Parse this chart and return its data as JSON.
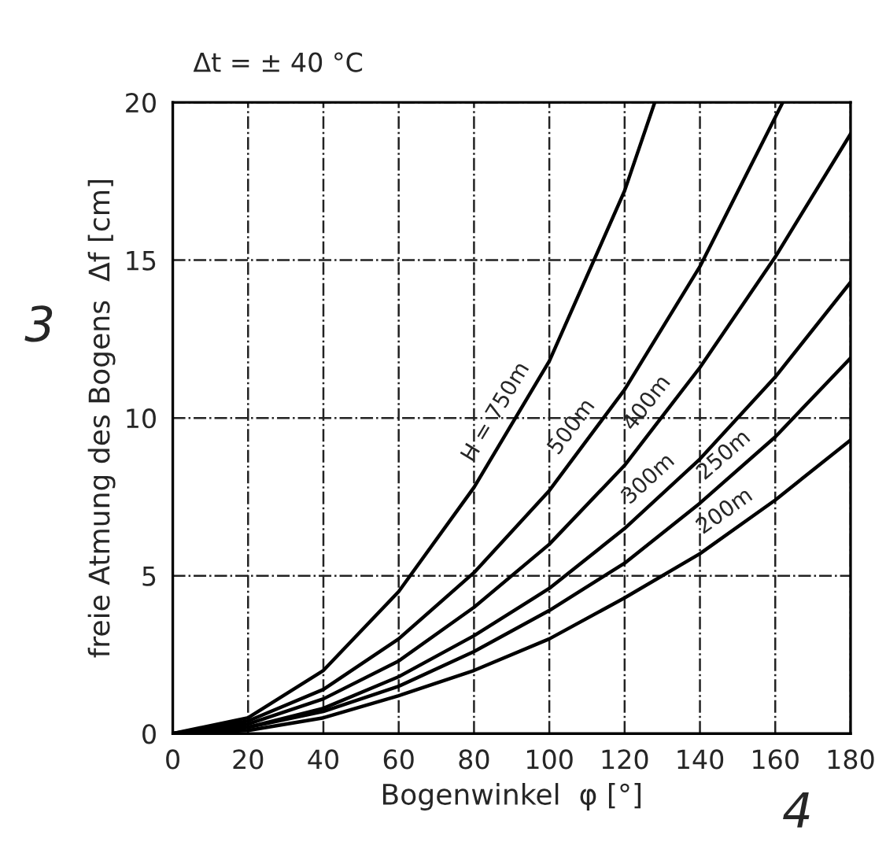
{
  "chart_data": {
    "type": "line",
    "title": "Δt = ± 40 °C",
    "xlabel": "Bogenwinkel  φ [°]",
    "ylabel": "freie Atmung des Bogens  Δf [cm]",
    "xlim": [
      0,
      180
    ],
    "ylim": [
      0,
      20
    ],
    "xticks": [
      0,
      20,
      40,
      60,
      80,
      100,
      120,
      140,
      160,
      180
    ],
    "yticks": [
      0,
      5,
      10,
      15,
      20
    ],
    "grid": true,
    "legend": false,
    "line_style": "solid",
    "marker": "none",
    "series": [
      {
        "name": "H = 750m",
        "color": "#000000",
        "x": [
          0,
          20,
          40,
          60,
          80,
          100,
          120,
          128
        ],
        "values": [
          0,
          0.5,
          2.0,
          4.5,
          7.8,
          11.8,
          17.2,
          20
        ]
      },
      {
        "name": "500m",
        "color": "#000000",
        "x": [
          0,
          20,
          40,
          60,
          80,
          100,
          120,
          140,
          162
        ],
        "values": [
          0,
          0.4,
          1.4,
          3.0,
          5.1,
          7.7,
          10.9,
          14.8,
          20
        ]
      },
      {
        "name": "400m",
        "color": "#000000",
        "x": [
          0,
          20,
          40,
          60,
          80,
          100,
          120,
          140,
          160,
          180
        ],
        "values": [
          0,
          0.3,
          1.1,
          2.3,
          4.0,
          6.0,
          8.5,
          11.6,
          15.1,
          19.0
        ]
      },
      {
        "name": "300m",
        "color": "#000000",
        "x": [
          0,
          20,
          40,
          60,
          80,
          100,
          120,
          140,
          160,
          180
        ],
        "values": [
          0,
          0.2,
          0.8,
          1.8,
          3.1,
          4.6,
          6.5,
          8.7,
          11.3,
          14.3
        ]
      },
      {
        "name": "250m",
        "color": "#000000",
        "x": [
          0,
          20,
          40,
          60,
          80,
          100,
          120,
          140,
          160,
          180
        ],
        "values": [
          0,
          0.2,
          0.7,
          1.5,
          2.6,
          3.9,
          5.4,
          7.3,
          9.4,
          11.9
        ]
      },
      {
        "name": "200m",
        "color": "#000000",
        "x": [
          0,
          20,
          40,
          60,
          80,
          100,
          120,
          140,
          160,
          180
        ],
        "values": [
          0,
          0.1,
          0.5,
          1.2,
          2.0,
          3.0,
          4.3,
          5.7,
          7.4,
          9.3
        ]
      }
    ],
    "annotations": [
      "3",
      "4"
    ]
  }
}
